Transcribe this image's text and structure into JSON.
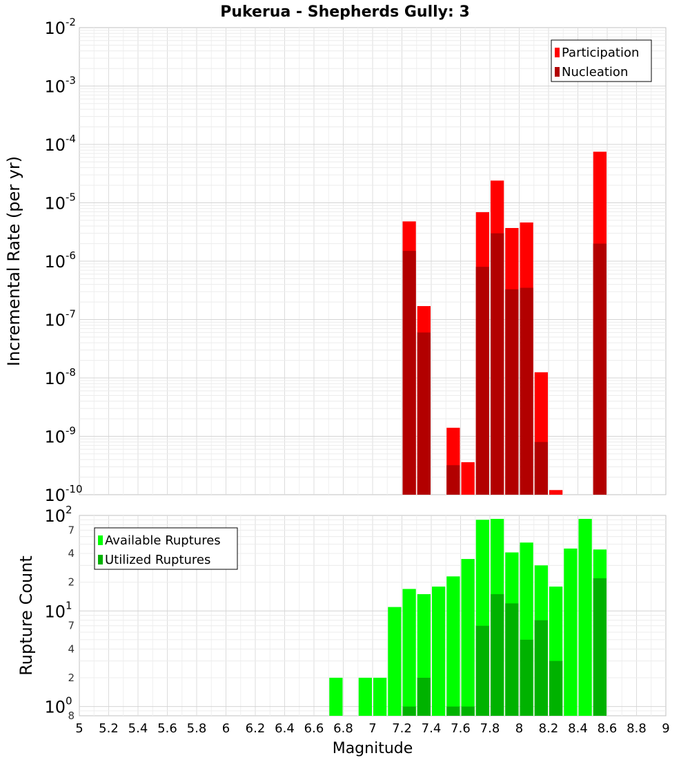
{
  "title": "Pukerua - Shepherds Gully: 3",
  "chart_data": [
    {
      "type": "bar",
      "ylabel": "Incremental Rate (per yr)",
      "yscale": "log",
      "ylim": [
        1e-10,
        0.01
      ],
      "y_decade_ticks": [
        {
          "base": "10",
          "exp": "-10"
        },
        {
          "base": "10",
          "exp": "-9"
        },
        {
          "base": "10",
          "exp": "-8"
        },
        {
          "base": "10",
          "exp": "-7"
        },
        {
          "base": "10",
          "exp": "-6"
        },
        {
          "base": "10",
          "exp": "-5"
        },
        {
          "base": "10",
          "exp": "-4"
        },
        {
          "base": "10",
          "exp": "-3"
        },
        {
          "base": "10",
          "exp": "-2"
        }
      ],
      "grid": true,
      "legend_position": "top-right",
      "bin_width": 0.1,
      "series": [
        {
          "name": "Participation",
          "color": "#ff0000",
          "points": [
            {
              "x": 7.25,
              "y": 4.8e-06
            },
            {
              "x": 7.35,
              "y": 1.7e-07
            },
            {
              "x": 7.55,
              "y": 1.4e-09
            },
            {
              "x": 7.65,
              "y": 3.6e-10
            },
            {
              "x": 7.75,
              "y": 6.9e-06
            },
            {
              "x": 7.85,
              "y": 2.4e-05
            },
            {
              "x": 7.95,
              "y": 3.7e-06
            },
            {
              "x": 8.05,
              "y": 4.6e-06
            },
            {
              "x": 8.15,
              "y": 1.25e-08
            },
            {
              "x": 8.25,
              "y": 1.2e-10
            },
            {
              "x": 8.55,
              "y": 7.5e-05
            }
          ]
        },
        {
          "name": "Nucleation",
          "color": "#b20000",
          "points": [
            {
              "x": 7.25,
              "y": 1.5e-06
            },
            {
              "x": 7.35,
              "y": 6e-08
            },
            {
              "x": 7.55,
              "y": 3.2e-10
            },
            {
              "x": 7.75,
              "y": 8e-07
            },
            {
              "x": 7.85,
              "y": 3e-06
            },
            {
              "x": 7.95,
              "y": 3.3e-07
            },
            {
              "x": 8.05,
              "y": 3.5e-07
            },
            {
              "x": 8.15,
              "y": 8e-10
            },
            {
              "x": 8.55,
              "y": 2e-06
            }
          ]
        }
      ]
    },
    {
      "type": "bar",
      "ylabel": "Rupture Count",
      "yscale": "log",
      "ylim": [
        0.8,
        100
      ],
      "y_decade_ticks": [
        {
          "base": "10",
          "exp": "0",
          "v": 1
        },
        {
          "base": "10",
          "exp": "1",
          "v": 10
        },
        {
          "base": "10",
          "exp": "2",
          "v": 100
        }
      ],
      "y_minor_ticks": [
        {
          "label": "8",
          "v": 0.8
        },
        {
          "label": "2",
          "v": 2
        },
        {
          "label": "4",
          "v": 4
        },
        {
          "label": "7",
          "v": 7
        },
        {
          "label": "2",
          "v": 20
        },
        {
          "label": "4",
          "v": 40
        },
        {
          "label": "7",
          "v": 70
        }
      ],
      "xlabel": "Magnitude",
      "xlim": [
        5,
        9
      ],
      "x_ticks": [
        "5",
        "5.2",
        "5.4",
        "5.6",
        "5.8",
        "6",
        "6.2",
        "6.4",
        "6.6",
        "6.8",
        "7",
        "7.2",
        "7.4",
        "7.6",
        "7.8",
        "8",
        "8.2",
        "8.4",
        "8.6",
        "8.8",
        "9"
      ],
      "grid": true,
      "legend_position": "top-left",
      "bin_width": 0.1,
      "series": [
        {
          "name": "Available Ruptures",
          "color": "#00ff00",
          "points": [
            {
              "x": 6.75,
              "y": 2
            },
            {
              "x": 6.95,
              "y": 2
            },
            {
              "x": 7.05,
              "y": 2
            },
            {
              "x": 7.15,
              "y": 11
            },
            {
              "x": 7.25,
              "y": 17
            },
            {
              "x": 7.35,
              "y": 15
            },
            {
              "x": 7.45,
              "y": 18
            },
            {
              "x": 7.55,
              "y": 23
            },
            {
              "x": 7.65,
              "y": 35
            },
            {
              "x": 7.75,
              "y": 90
            },
            {
              "x": 7.85,
              "y": 92
            },
            {
              "x": 7.95,
              "y": 41
            },
            {
              "x": 8.05,
              "y": 52
            },
            {
              "x": 8.15,
              "y": 30
            },
            {
              "x": 8.25,
              "y": 18
            },
            {
              "x": 8.35,
              "y": 45
            },
            {
              "x": 8.45,
              "y": 92
            },
            {
              "x": 8.55,
              "y": 44
            }
          ]
        },
        {
          "name": "Utilized Ruptures",
          "color": "#00b200",
          "points": [
            {
              "x": 7.25,
              "y": 1
            },
            {
              "x": 7.35,
              "y": 2
            },
            {
              "x": 7.55,
              "y": 1
            },
            {
              "x": 7.65,
              "y": 1
            },
            {
              "x": 7.75,
              "y": 7
            },
            {
              "x": 7.85,
              "y": 15
            },
            {
              "x": 7.95,
              "y": 12
            },
            {
              "x": 8.05,
              "y": 5
            },
            {
              "x": 8.15,
              "y": 8
            },
            {
              "x": 8.25,
              "y": 3
            },
            {
              "x": 8.55,
              "y": 22
            }
          ]
        }
      ]
    }
  ]
}
